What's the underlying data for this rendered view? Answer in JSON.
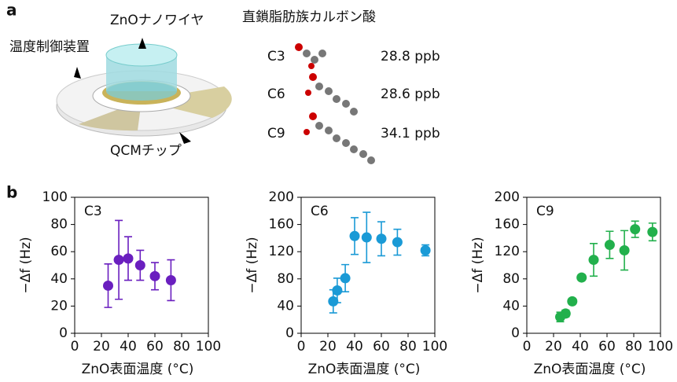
{
  "panel_a": {
    "label": "a",
    "nanowire": "ZnOナノワイヤ",
    "heater": "温度制御装置",
    "chip": "QCMチップ",
    "acids_title": "直鎖脂肪族カルボン酸",
    "rows": [
      {
        "name": "C3",
        "conc": "28.8 ppb"
      },
      {
        "name": "C6",
        "conc": "28.6 ppb"
      },
      {
        "name": "C9",
        "conc": "34.1 ppb"
      }
    ]
  },
  "panel_b_label": "b",
  "chart_data": [
    {
      "type": "scatter",
      "title": "C3",
      "x_label": "ZnO表面温度 (°C)",
      "y_label": "−Δf (Hz)",
      "x": [
        25,
        33,
        40,
        49,
        60,
        72
      ],
      "xlim": [
        0,
        100
      ],
      "xticks": [
        0,
        20,
        40,
        60,
        80,
        100
      ],
      "ylim": [
        0,
        100
      ],
      "yticks": [
        0,
        20,
        40,
        60,
        80,
        100
      ],
      "series": [
        {
          "color": "#6a1fbf",
          "values": [
            35,
            54,
            55,
            50,
            42,
            39
          ],
          "errors": [
            16,
            29,
            16,
            11,
            10,
            15
          ]
        }
      ]
    },
    {
      "type": "scatter",
      "title": "C6",
      "x_label": "ZnO表面温度 (°C)",
      "y_label": "−Δf (Hz)",
      "x": [
        24,
        27,
        33,
        40,
        49,
        60,
        72,
        93
      ],
      "xlim": [
        0,
        100
      ],
      "xticks": [
        0,
        20,
        40,
        60,
        80,
        100
      ],
      "ylim": [
        0,
        200
      ],
      "yticks": [
        0,
        40,
        80,
        120,
        160,
        200
      ],
      "series": [
        {
          "color": "#1a9ad6",
          "values": [
            47,
            63,
            81,
            143,
            141,
            139,
            134,
            122
          ],
          "errors": [
            17,
            18,
            20,
            27,
            37,
            25,
            19,
            8
          ]
        }
      ]
    },
    {
      "type": "scatter",
      "title": "C9",
      "x_label": "ZnO表面温度 (°C)",
      "y_label": "−Δf (Hz)",
      "x": [
        25,
        29,
        34,
        41,
        50,
        62,
        73,
        81,
        94
      ],
      "xlim": [
        0,
        100
      ],
      "xticks": [
        0,
        20,
        40,
        60,
        80,
        100
      ],
      "ylim": [
        0,
        200
      ],
      "yticks": [
        0,
        40,
        80,
        120,
        160,
        200
      ],
      "series": [
        {
          "color": "#22b04c",
          "values": [
            24,
            29,
            47,
            82,
            108,
            130,
            122,
            153,
            149
          ],
          "errors": [
            7,
            5,
            4,
            4,
            24,
            20,
            29,
            12,
            13
          ]
        }
      ]
    }
  ]
}
